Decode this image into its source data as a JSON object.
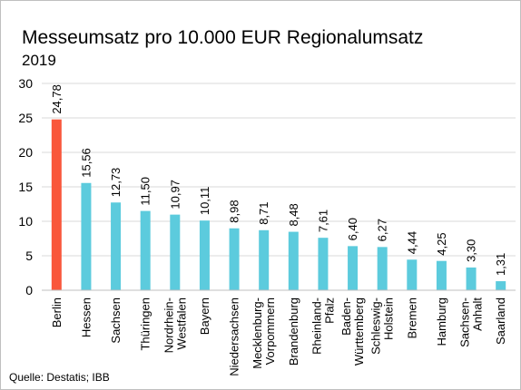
{
  "chart_data": {
    "type": "bar",
    "title": "Messeumsatz pro 10.000 EUR Regionalumsatz",
    "subtitle": "2019",
    "source": "Quelle: Destatis; IBB",
    "categories": [
      "Berlin",
      "Hessen",
      "Sachsen",
      "Thüringen",
      "Nordrhein-Westfalen",
      "Bayern",
      "Niedersachsen",
      "Mecklenburg-Vorpommern",
      "Brandenburg",
      "Rheinland-Pfalz",
      "Baden-Württemberg",
      "Schleswig-Holstein",
      "Bremen",
      "Hamburg",
      "Sachsen-Anhalt",
      "Saarland"
    ],
    "values": [
      24.78,
      15.56,
      12.73,
      11.5,
      10.97,
      10.11,
      8.98,
      8.71,
      8.48,
      7.61,
      6.4,
      6.27,
      4.44,
      4.25,
      3.3,
      1.31
    ],
    "value_labels": [
      "24,78",
      "15,56",
      "12,73",
      "11,50",
      "10,97",
      "10,11",
      "8,98",
      "8,71",
      "8,48",
      "7,61",
      "6,40",
      "6,27",
      "4,44",
      "4,25",
      "3,30",
      "1,31"
    ],
    "colors": [
      "#f9573b",
      "#5ccbdd",
      "#5ccbdd",
      "#5ccbdd",
      "#5ccbdd",
      "#5ccbdd",
      "#5ccbdd",
      "#5ccbdd",
      "#5ccbdd",
      "#5ccbdd",
      "#5ccbdd",
      "#5ccbdd",
      "#5ccbdd",
      "#5ccbdd",
      "#5ccbdd",
      "#5ccbdd"
    ],
    "ylim": [
      0,
      30
    ],
    "yticks": [
      0,
      5,
      10,
      15,
      20,
      25,
      30
    ],
    "grid": true
  }
}
